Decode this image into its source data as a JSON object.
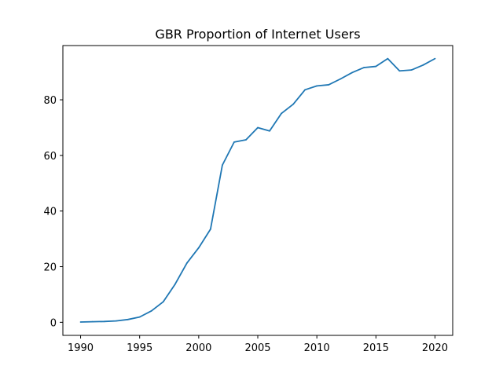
{
  "chart_data": {
    "type": "line",
    "title": "GBR Proportion of Internet Users",
    "xlabel": "",
    "ylabel": "",
    "xlim": [
      1988.5,
      2021.5
    ],
    "ylim": [
      -4.7,
      99.5
    ],
    "xticks": [
      1990,
      1995,
      2000,
      2005,
      2010,
      2015,
      2020
    ],
    "yticks": [
      0,
      20,
      40,
      60,
      80
    ],
    "grid": false,
    "legend": "none",
    "series": [
      {
        "color": "#1f77b4",
        "x": [
          1990,
          1991,
          1992,
          1993,
          1994,
          1995,
          1996,
          1997,
          1998,
          1999,
          2000,
          2001,
          2002,
          2003,
          2004,
          2005,
          2006,
          2007,
          2008,
          2009,
          2010,
          2011,
          2012,
          2013,
          2014,
          2015,
          2016,
          2017,
          2018,
          2019,
          2020
        ],
        "values": [
          0.1,
          0.2,
          0.3,
          0.5,
          1.0,
          1.9,
          4.1,
          7.4,
          13.7,
          21.3,
          26.8,
          33.5,
          56.5,
          64.8,
          65.6,
          70.0,
          68.8,
          75.1,
          78.4,
          83.6,
          85.0,
          85.4,
          87.5,
          89.8,
          91.6,
          92.0,
          94.8,
          90.4,
          90.7,
          92.5,
          94.8
        ]
      }
    ]
  }
}
